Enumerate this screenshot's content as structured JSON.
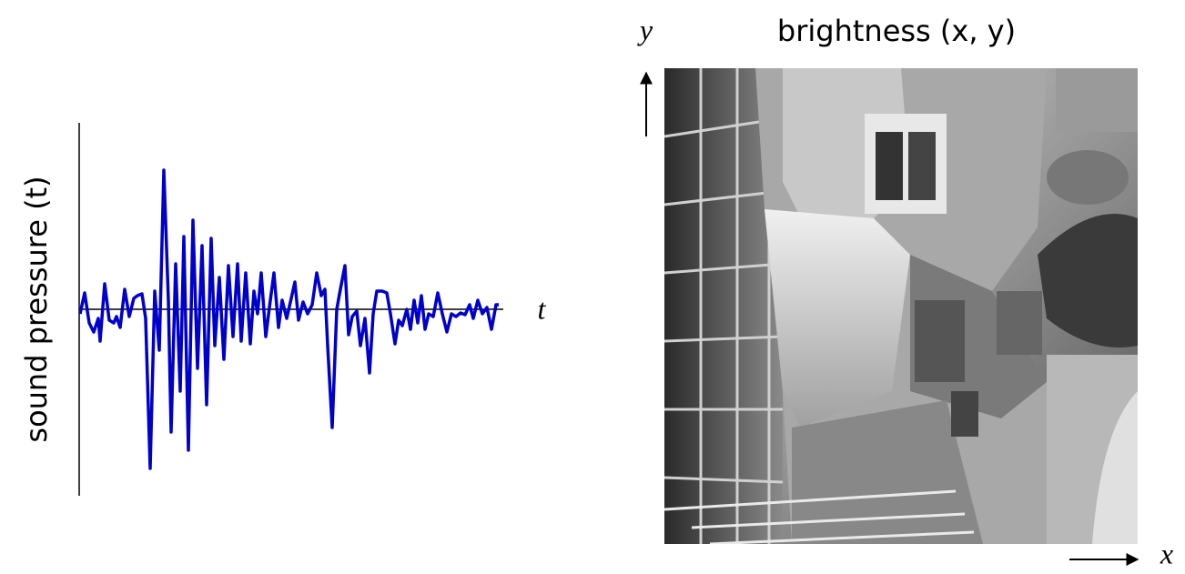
{
  "left_panel": {
    "y_label": "sound pressure (t)",
    "x_label": "t"
  },
  "right_panel": {
    "title": "brightness (x, y)",
    "y_label": "y",
    "x_label": "x"
  }
}
